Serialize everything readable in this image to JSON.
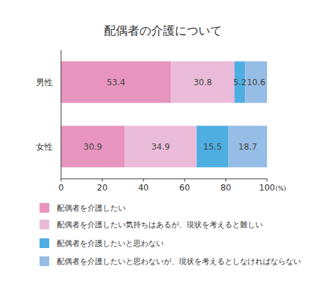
{
  "chart_data": {
    "type": "bar",
    "title": "配偶者の介護について",
    "orientation": "horizontal",
    "stacked": true,
    "data_labels": true,
    "grid": false,
    "legend": "bottom",
    "categories": [
      "男性",
      "女性"
    ],
    "series": [
      {
        "name": "配偶者を介護したい",
        "color": "#e794bf",
        "values": [
          53.4,
          30.9
        ]
      },
      {
        "name": "配偶者を介護したい気持ちはあるが、現状を考えると難しい",
        "color": "#ebbcd9",
        "values": [
          30.8,
          34.9
        ]
      },
      {
        "name": "配偶者を介護したいと思わない",
        "color": "#4eaee2",
        "values": [
          5.2,
          15.5
        ]
      },
      {
        "name": "配偶者を介護したいと思わないが、現状を考えるとしなければならない",
        "color": "#96bde6",
        "values": [
          10.6,
          18.7
        ]
      }
    ],
    "xlim": [
      0,
      100
    ],
    "xticks": [
      0,
      20,
      40,
      60,
      80,
      100
    ],
    "xlabel": "(%)"
  }
}
